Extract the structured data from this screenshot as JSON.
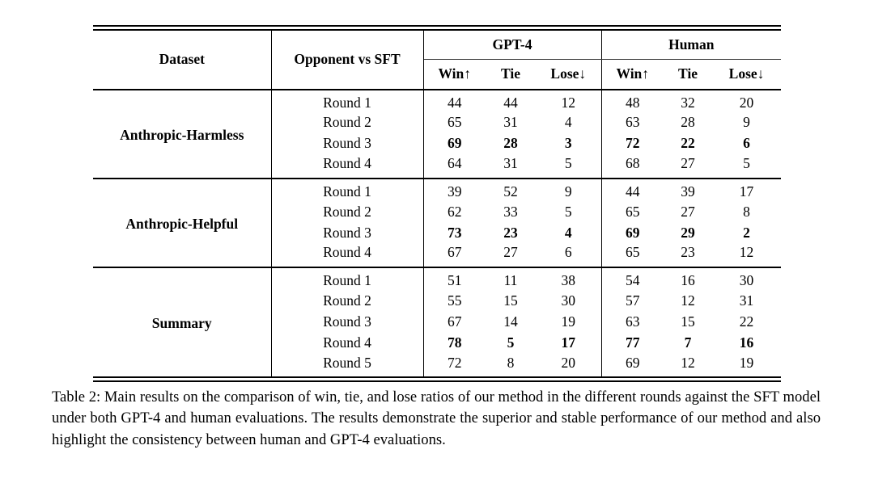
{
  "table": {
    "header": {
      "dataset": "Dataset",
      "opponent": "Opponent vs SFT",
      "group_gpt4": "GPT-4",
      "group_human": "Human",
      "metrics": [
        "Win↑",
        "Tie",
        "Lose↓"
      ]
    },
    "sections": [
      {
        "dataset": "Anthropic-Harmless",
        "rows": [
          {
            "round": "Round 1",
            "gpt4": [
              44,
              44,
              12
            ],
            "human": [
              48,
              32,
              20
            ],
            "bold": false
          },
          {
            "round": "Round 2",
            "gpt4": [
              65,
              31,
              4
            ],
            "human": [
              63,
              28,
              9
            ],
            "bold": false
          },
          {
            "round": "Round 3",
            "gpt4": [
              69,
              28,
              3
            ],
            "human": [
              72,
              22,
              6
            ],
            "bold": true
          },
          {
            "round": "Round 4",
            "gpt4": [
              64,
              31,
              5
            ],
            "human": [
              68,
              27,
              5
            ],
            "bold": false
          }
        ]
      },
      {
        "dataset": "Anthropic-Helpful",
        "rows": [
          {
            "round": "Round 1",
            "gpt4": [
              39,
              52,
              9
            ],
            "human": [
              44,
              39,
              17
            ],
            "bold": false
          },
          {
            "round": "Round 2",
            "gpt4": [
              62,
              33,
              5
            ],
            "human": [
              65,
              27,
              8
            ],
            "bold": false
          },
          {
            "round": "Round 3",
            "gpt4": [
              73,
              23,
              4
            ],
            "human": [
              69,
              29,
              2
            ],
            "bold": true
          },
          {
            "round": "Round 4",
            "gpt4": [
              67,
              27,
              6
            ],
            "human": [
              65,
              23,
              12
            ],
            "bold": false
          }
        ]
      },
      {
        "dataset": "Summary",
        "rows": [
          {
            "round": "Round 1",
            "gpt4": [
              51,
              11,
              38
            ],
            "human": [
              54,
              16,
              30
            ],
            "bold": false
          },
          {
            "round": "Round 2",
            "gpt4": [
              55,
              15,
              30
            ],
            "human": [
              57,
              12,
              31
            ],
            "bold": false
          },
          {
            "round": "Round 3",
            "gpt4": [
              67,
              14,
              19
            ],
            "human": [
              63,
              15,
              22
            ],
            "bold": false
          },
          {
            "round": "Round 4",
            "gpt4": [
              78,
              5,
              17
            ],
            "human": [
              77,
              7,
              16
            ],
            "bold": true
          },
          {
            "round": "Round 5",
            "gpt4": [
              72,
              8,
              20
            ],
            "human": [
              69,
              12,
              19
            ],
            "bold": false
          }
        ]
      }
    ]
  },
  "caption": "Table 2: Main results on the comparison of win, tie, and lose ratios of our method in the different rounds against the SFT model under both GPT-4 and human evaluations. The results demonstrate the superior and stable performance of our method and also highlight the consistency between human and GPT-4 evaluations."
}
